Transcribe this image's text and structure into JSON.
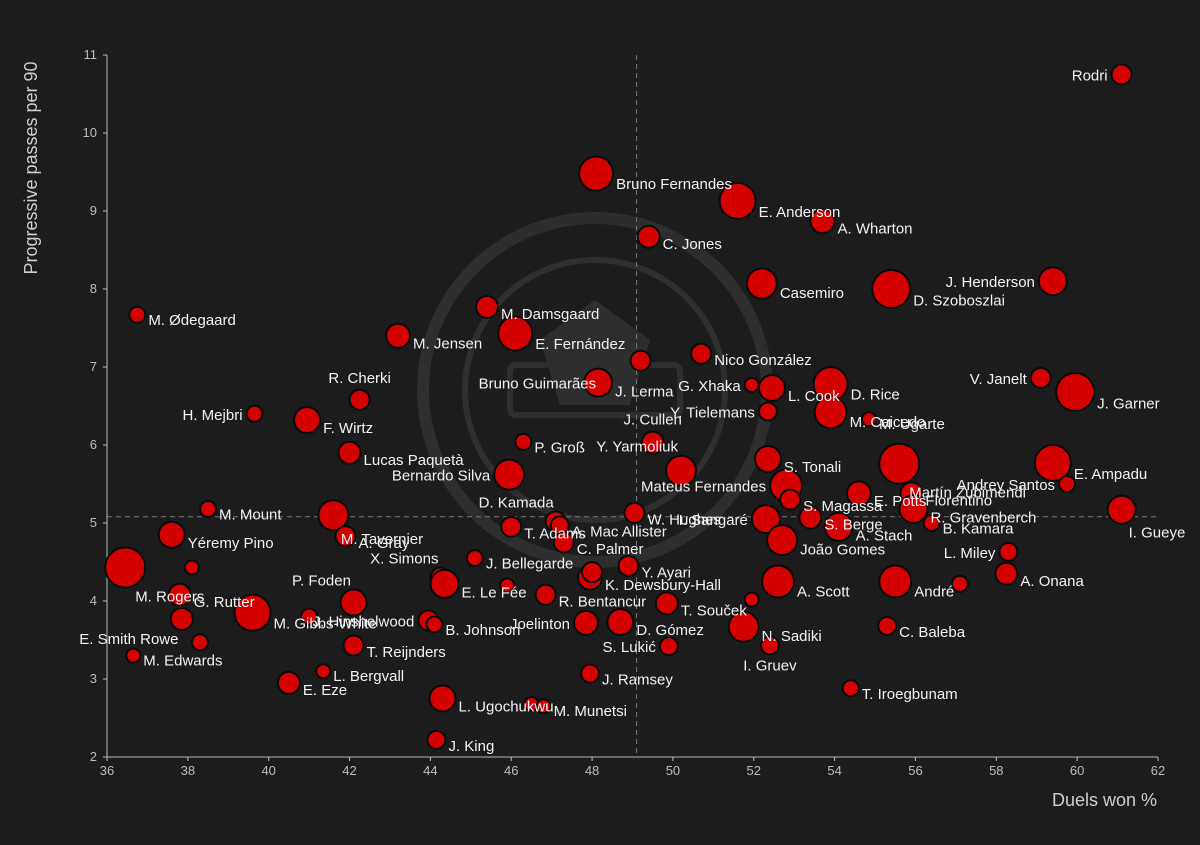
{
  "chart_data": {
    "type": "scatter",
    "title": "",
    "xlabel": "Duels won %",
    "ylabel": "Progressive passes per 90",
    "xlim": [
      36,
      62
    ],
    "ylim": [
      2,
      11
    ],
    "xticks": [
      36,
      38,
      40,
      42,
      44,
      46,
      48,
      50,
      52,
      54,
      56,
      58,
      60,
      62
    ],
    "yticks": [
      2,
      3,
      4,
      5,
      6,
      7,
      8,
      9,
      10,
      11
    ],
    "average_lines": {
      "x": 49.1,
      "y": 5.08
    },
    "grid": false,
    "legend": "none",
    "colors": {
      "background": "#1c1c1c",
      "marker": "#d40000",
      "marker_edge": "#0a0a0a",
      "axis": "#bdbdbd",
      "ref_line": "#777777",
      "text": "#f2f2f2"
    },
    "points": [
      {
        "name": "Rodri",
        "x": 61.1,
        "y": 10.75,
        "s": 10,
        "la": "l"
      },
      {
        "name": "Bruno Fernandes",
        "x": 48.1,
        "y": 9.48,
        "s": 17,
        "la": "r"
      },
      {
        "name": "E. Anderson",
        "x": 51.6,
        "y": 9.13,
        "s": 18,
        "la": "r"
      },
      {
        "name": "A. Wharton",
        "x": 53.7,
        "y": 8.87,
        "s": 12,
        "la": "r"
      },
      {
        "name": "C. Jones",
        "x": 49.4,
        "y": 8.67,
        "s": 11,
        "la": "r"
      },
      {
        "name": "Casemiro",
        "x": 52.2,
        "y": 8.07,
        "s": 15,
        "la": "r"
      },
      {
        "name": "D. Szoboszlai",
        "x": 55.4,
        "y": 8.0,
        "s": 19,
        "la": "r"
      },
      {
        "name": "J. Henderson",
        "x": 59.4,
        "y": 8.1,
        "s": 14,
        "la": "l"
      },
      {
        "name": "M. Ødegaard",
        "x": 36.75,
        "y": 7.67,
        "s": 8,
        "la": "r"
      },
      {
        "name": "M. Damsgaard",
        "x": 45.4,
        "y": 7.77,
        "s": 11,
        "la": "r"
      },
      {
        "name": "M. Jensen",
        "x": 43.2,
        "y": 7.4,
        "s": 12,
        "la": "r"
      },
      {
        "name": "E. Fernández",
        "x": 46.1,
        "y": 7.43,
        "s": 17,
        "la": "r"
      },
      {
        "name": "Nico González",
        "x": 50.7,
        "y": 7.17,
        "s": 10,
        "la": "r"
      },
      {
        "name": "J. Lerma",
        "x": 48.15,
        "y": 6.8,
        "s": 14,
        "la": "r"
      },
      {
        "name": "Bruno Guimarães",
        "x": 48.2,
        "y": 6.8,
        "s": 0,
        "la": "l"
      },
      {
        "name": "",
        "x": 49.2,
        "y": 7.08,
        "s": 10,
        "la": "r"
      },
      {
        "name": "G. Xhaka",
        "x": 51.95,
        "y": 6.77,
        "s": 7,
        "la": "l"
      },
      {
        "name": "L. Cook",
        "x": 52.45,
        "y": 6.73,
        "s": 13,
        "la": "r"
      },
      {
        "name": "D. Rice",
        "x": 53.9,
        "y": 6.78,
        "s": 17,
        "la": "r"
      },
      {
        "name": "V. Janelt",
        "x": 59.1,
        "y": 6.86,
        "s": 10,
        "la": "l"
      },
      {
        "name": "J. Garner",
        "x": 59.95,
        "y": 6.68,
        "s": 19,
        "la": "r"
      },
      {
        "name": "R. Cherki",
        "x": 42.25,
        "y": 6.58,
        "s": 10,
        "la": "t"
      },
      {
        "name": "H. Mejbri",
        "x": 39.65,
        "y": 6.4,
        "s": 8,
        "la": "l"
      },
      {
        "name": "F. Wirtz",
        "x": 40.95,
        "y": 6.32,
        "s": 13,
        "la": "r"
      },
      {
        "name": "Y. Tielemans",
        "x": 52.35,
        "y": 6.43,
        "s": 9,
        "la": "l"
      },
      {
        "name": "M. Caicedo",
        "x": 53.9,
        "y": 6.42,
        "s": 16,
        "la": "r"
      },
      {
        "name": "M. Ugarte",
        "x": 54.85,
        "y": 6.33,
        "s": 7,
        "la": "r"
      },
      {
        "name": "J. Cullen",
        "x": 49.5,
        "y": 6.03,
        "s": 11,
        "la": "t"
      },
      {
        "name": "P. Groß",
        "x": 46.3,
        "y": 6.04,
        "s": 8,
        "la": "r"
      },
      {
        "name": "Lucas Paquetà",
        "x": 42.0,
        "y": 5.9,
        "s": 11,
        "la": "r"
      },
      {
        "name": "Y. Yarmoliuk",
        "x": 50.2,
        "y": 5.67,
        "s": 15,
        "la": "tl"
      },
      {
        "name": "Bernardo Silva",
        "x": 45.95,
        "y": 5.62,
        "s": 15,
        "la": "l"
      },
      {
        "name": "S. Tonali",
        "x": 52.35,
        "y": 5.82,
        "s": 13,
        "la": "r"
      },
      {
        "name": "Martín Zubimendi",
        "x": 55.6,
        "y": 5.76,
        "s": 20,
        "la": "br"
      },
      {
        "name": "E. Ampadu",
        "x": 59.4,
        "y": 5.77,
        "s": 18,
        "la": "r"
      },
      {
        "name": "Andrey Santos",
        "x": 59.75,
        "y": 5.5,
        "s": 8,
        "la": "l"
      },
      {
        "name": "Mateus Fernandes",
        "x": 52.8,
        "y": 5.48,
        "s": 16,
        "la": "l"
      },
      {
        "name": "E. Potts",
        "x": 54.6,
        "y": 5.38,
        "s": 12,
        "la": "r"
      },
      {
        "name": "Florentino",
        "x": 55.9,
        "y": 5.38,
        "s": 11,
        "la": "r"
      },
      {
        "name": "S. Magassa",
        "x": 52.9,
        "y": 5.3,
        "s": 10,
        "la": "r"
      },
      {
        "name": "R. Gravenberch",
        "x": 55.95,
        "y": 5.18,
        "s": 14,
        "la": "r"
      },
      {
        "name": "M. Mount",
        "x": 38.5,
        "y": 5.18,
        "s": 8,
        "la": "r"
      },
      {
        "name": "M. Tavernier",
        "x": 41.6,
        "y": 5.1,
        "s": 15,
        "la": "br"
      },
      {
        "name": "D. Kamada",
        "x": 47.1,
        "y": 5.02,
        "s": 10,
        "la": "tl"
      },
      {
        "name": "W. Hughes",
        "x": 49.05,
        "y": 5.13,
        "s": 10,
        "la": "r"
      },
      {
        "name": "I. Sangaré",
        "x": 52.3,
        "y": 5.05,
        "s": 14,
        "la": "l"
      },
      {
        "name": "S. Berge",
        "x": 53.4,
        "y": 5.07,
        "s": 11,
        "la": "r"
      },
      {
        "name": "A. Stach",
        "x": 54.1,
        "y": 4.95,
        "s": 14,
        "la": "r"
      },
      {
        "name": "B. Kamara",
        "x": 56.4,
        "y": 5.0,
        "s": 8,
        "la": "r"
      },
      {
        "name": "I. Gueye",
        "x": 61.1,
        "y": 5.17,
        "s": 14,
        "la": "br"
      },
      {
        "name": "T. Adams",
        "x": 46.0,
        "y": 4.95,
        "s": 10,
        "la": "r"
      },
      {
        "name": "A. Mac Allister",
        "x": 47.2,
        "y": 4.97,
        "s": 9,
        "la": "r"
      },
      {
        "name": "Yéremy Pino",
        "x": 37.6,
        "y": 4.85,
        "s": 13,
        "la": "r"
      },
      {
        "name": "A. Gray",
        "x": 41.9,
        "y": 4.83,
        "s": 10,
        "la": "r"
      },
      {
        "name": "C. Palmer",
        "x": 47.3,
        "y": 4.75,
        "s": 10,
        "la": "r"
      },
      {
        "name": "João Gomes",
        "x": 52.7,
        "y": 4.78,
        "s": 15,
        "la": "r"
      },
      {
        "name": "L. Miley",
        "x": 58.3,
        "y": 4.63,
        "s": 9,
        "la": "l"
      },
      {
        "name": "J. Bellegarde",
        "x": 45.1,
        "y": 4.55,
        "s": 8,
        "la": "r"
      },
      {
        "name": "X. Simons",
        "x": 44.25,
        "y": 4.3,
        "s": 10,
        "la": "tl"
      },
      {
        "name": "Y. Ayari",
        "x": 48.9,
        "y": 4.45,
        "s": 10,
        "la": "r"
      },
      {
        "name": "M. Rogers",
        "x": 36.45,
        "y": 4.43,
        "s": 20,
        "la": "br"
      },
      {
        "name": "",
        "x": 38.1,
        "y": 4.43,
        "s": 7,
        "la": "r"
      },
      {
        "name": "E. Le Fée",
        "x": 44.35,
        "y": 4.22,
        "s": 14,
        "la": "r"
      },
      {
        "name": "",
        "x": 45.9,
        "y": 4.2,
        "s": 7,
        "la": "r"
      },
      {
        "name": "K. Dewsbury-Hall",
        "x": 47.95,
        "y": 4.3,
        "s": 12,
        "la": "r"
      },
      {
        "name": "",
        "x": 48.0,
        "y": 4.37,
        "s": 10,
        "la": "r"
      },
      {
        "name": "A. Scott",
        "x": 52.6,
        "y": 4.25,
        "s": 16,
        "la": "r"
      },
      {
        "name": "André",
        "x": 55.5,
        "y": 4.25,
        "s": 16,
        "la": "r"
      },
      {
        "name": "A. Onana",
        "x": 58.25,
        "y": 4.35,
        "s": 11,
        "la": "r"
      },
      {
        "name": "",
        "x": 57.1,
        "y": 4.22,
        "s": 8,
        "la": "r"
      },
      {
        "name": "P. Foden",
        "x": 42.1,
        "y": 3.98,
        "s": 13,
        "la": "tl"
      },
      {
        "name": "R. Bentancur",
        "x": 46.85,
        "y": 4.08,
        "s": 10,
        "la": "r"
      },
      {
        "name": "G. Rutter",
        "x": 37.8,
        "y": 4.08,
        "s": 11,
        "la": "r"
      },
      {
        "name": "T. Souček",
        "x": 49.85,
        "y": 3.97,
        "s": 11,
        "la": "r"
      },
      {
        "name": "",
        "x": 51.95,
        "y": 4.02,
        "s": 7,
        "la": "r"
      },
      {
        "name": "M. Gibbs-White",
        "x": 39.6,
        "y": 3.85,
        "s": 18,
        "la": "r"
      },
      {
        "name": "",
        "x": 41.0,
        "y": 3.8,
        "s": 8,
        "la": "r"
      },
      {
        "name": "J. Hinshelwood",
        "x": 43.95,
        "y": 3.75,
        "s": 10,
        "la": "l"
      },
      {
        "name": "E. Smith Rowe",
        "x": 37.85,
        "y": 3.77,
        "s": 11,
        "la": "bl"
      },
      {
        "name": "B. Johnson",
        "x": 44.1,
        "y": 3.7,
        "s": 8,
        "la": "r"
      },
      {
        "name": "Joelinton",
        "x": 47.85,
        "y": 3.72,
        "s": 12,
        "la": "l"
      },
      {
        "name": "D. Gómez",
        "x": 48.7,
        "y": 3.73,
        "s": 13,
        "la": "r"
      },
      {
        "name": "N. Sadiki",
        "x": 51.75,
        "y": 3.67,
        "s": 15,
        "la": "r"
      },
      {
        "name": "C. Baleba",
        "x": 55.3,
        "y": 3.68,
        "s": 9,
        "la": "r"
      },
      {
        "name": "T. Reijnders",
        "x": 42.1,
        "y": 3.43,
        "s": 10,
        "la": "r"
      },
      {
        "name": "S. Lukić",
        "x": 49.9,
        "y": 3.42,
        "s": 9,
        "la": "l"
      },
      {
        "name": "I. Gruev",
        "x": 52.4,
        "y": 3.43,
        "s": 9,
        "la": "b"
      },
      {
        "name": "M. Edwards",
        "x": 36.65,
        "y": 3.3,
        "s": 7,
        "la": "r"
      },
      {
        "name": "",
        "x": 38.3,
        "y": 3.47,
        "s": 8,
        "la": "r"
      },
      {
        "name": "L. Bergvall",
        "x": 41.35,
        "y": 3.1,
        "s": 7,
        "la": "r"
      },
      {
        "name": "J. Ramsey",
        "x": 47.95,
        "y": 3.07,
        "s": 9,
        "la": "r"
      },
      {
        "name": "E. Eze",
        "x": 40.5,
        "y": 2.95,
        "s": 11,
        "la": "r"
      },
      {
        "name": "T. Iroegbunam",
        "x": 54.4,
        "y": 2.88,
        "s": 8,
        "la": "r"
      },
      {
        "name": "L. Ugochukwu",
        "x": 44.3,
        "y": 2.75,
        "s": 13,
        "la": "r"
      },
      {
        "name": "",
        "x": 46.5,
        "y": 2.68,
        "s": 7,
        "la": "r"
      },
      {
        "name": "M. Munetsi",
        "x": 46.8,
        "y": 2.65,
        "s": 7,
        "la": "r"
      },
      {
        "name": "J. King",
        "x": 44.15,
        "y": 2.22,
        "s": 9,
        "la": "r"
      }
    ]
  }
}
